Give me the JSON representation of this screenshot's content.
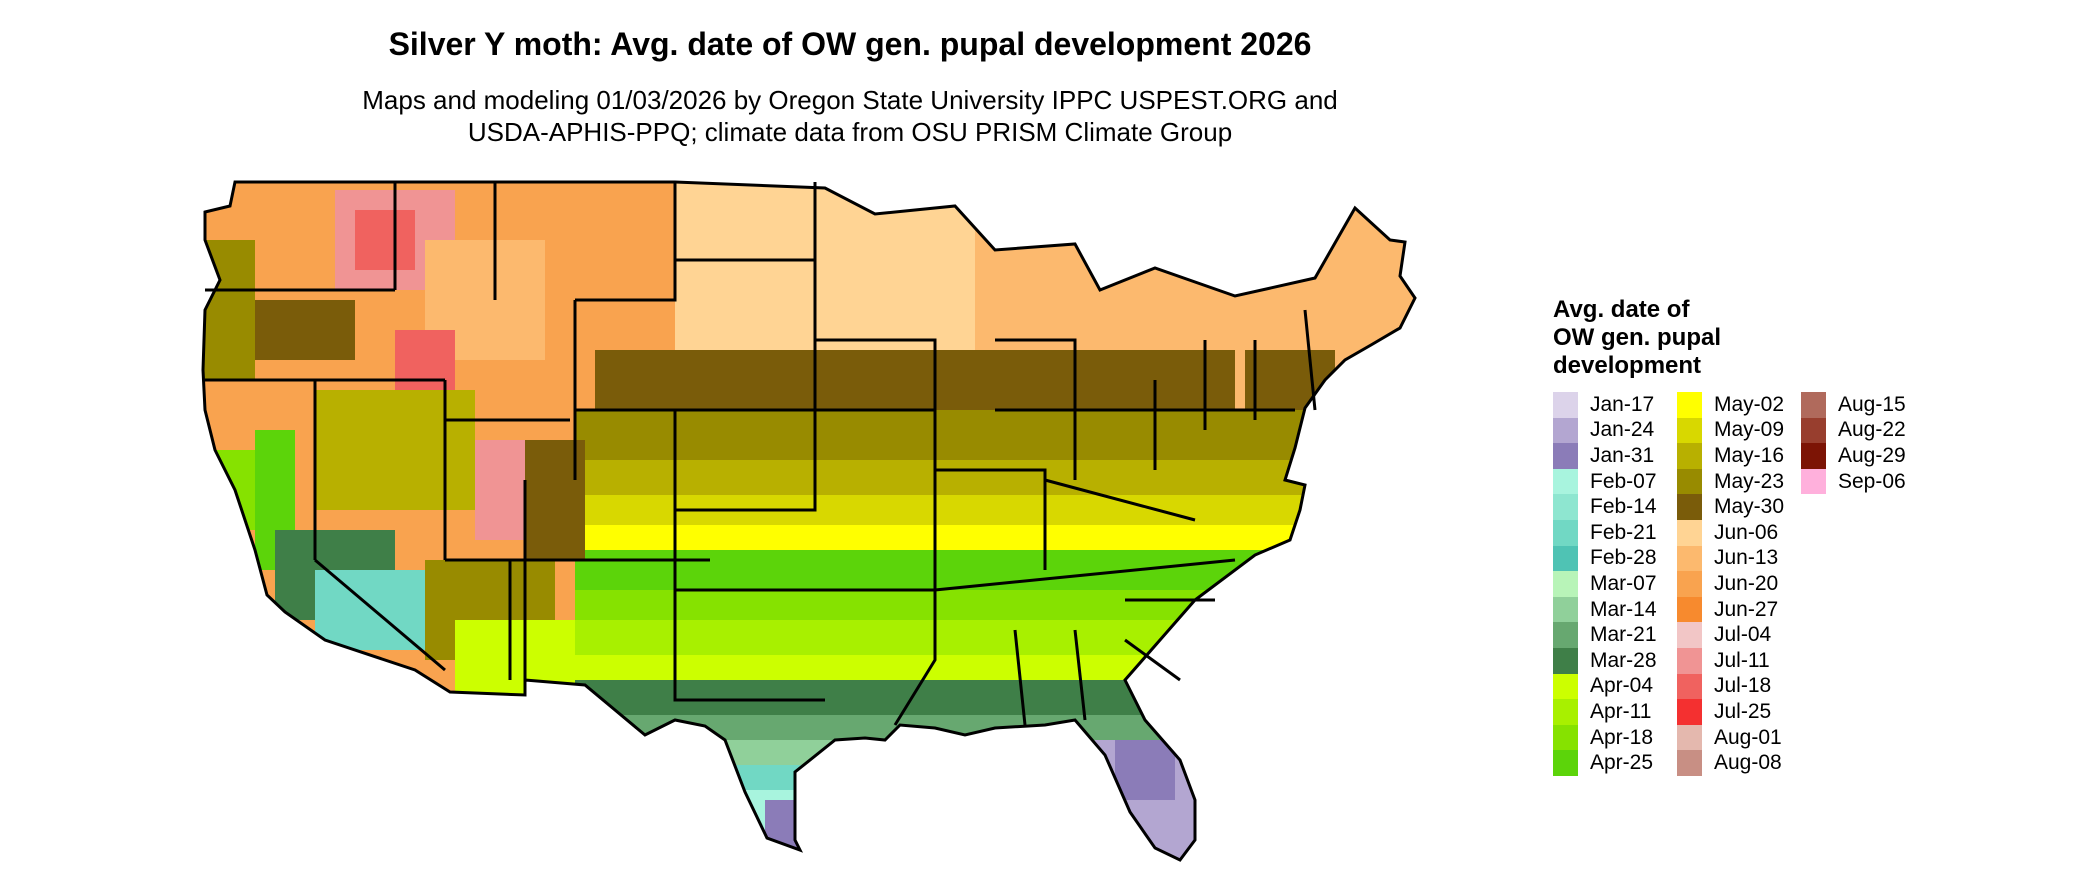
{
  "title": "Silver Y moth: Avg. date of OW gen. pupal development 2026",
  "subtitle": [
    "Maps and modeling 01/03/2026 by Oregon State University IPPC USPEST.ORG and",
    "USDA-APHIS-PPQ; climate data from OSU PRISM Climate Group"
  ],
  "legend": {
    "title": [
      "Avg. date of",
      "OW gen. pupal",
      "development"
    ],
    "columns": [
      [
        {
          "label": "Jan-17",
          "color": "#dcd3ea"
        },
        {
          "label": "Jan-24",
          "color": "#b3a6d1"
        },
        {
          "label": "Jan-31",
          "color": "#8b7cb8"
        },
        {
          "label": "Feb-07",
          "color": "#a8f4de"
        },
        {
          "label": "Feb-14",
          "color": "#8ee6d0"
        },
        {
          "label": "Feb-21",
          "color": "#71d8c4"
        },
        {
          "label": "Feb-28",
          "color": "#4fc3b4"
        },
        {
          "label": "Mar-07",
          "color": "#b8f4b8"
        },
        {
          "label": "Mar-14",
          "color": "#90d09a"
        },
        {
          "label": "Mar-21",
          "color": "#67a870"
        },
        {
          "label": "Mar-28",
          "color": "#3f7f48"
        },
        {
          "label": "Apr-04",
          "color": "#ccff00"
        },
        {
          "label": "Apr-11",
          "color": "#a8f000"
        },
        {
          "label": "Apr-18",
          "color": "#86e200"
        },
        {
          "label": "Apr-25",
          "color": "#5cd40a"
        }
      ],
      [
        {
          "label": "May-02",
          "color": "#ffff00"
        },
        {
          "label": "May-09",
          "color": "#d8d800"
        },
        {
          "label": "May-16",
          "color": "#b8b000"
        },
        {
          "label": "May-23",
          "color": "#988b00"
        },
        {
          "label": "May-30",
          "color": "#7a5c0a"
        },
        {
          "label": "Jun-06",
          "color": "#ffd494"
        },
        {
          "label": "Jun-13",
          "color": "#fcb96e"
        },
        {
          "label": "Jun-20",
          "color": "#f9a34f"
        },
        {
          "label": "Jun-27",
          "color": "#f78a2e"
        },
        {
          "label": "Jul-04",
          "color": "#f2c6c6"
        },
        {
          "label": "Jul-11",
          "color": "#f09494"
        },
        {
          "label": "Jul-18",
          "color": "#f0625f"
        },
        {
          "label": "Jul-25",
          "color": "#f43030"
        },
        {
          "label": "Aug-01",
          "color": "#e4b8ae"
        },
        {
          "label": "Aug-08",
          "color": "#c88f84"
        }
      ],
      [
        {
          "label": "Aug-15",
          "color": "#b06a5c"
        },
        {
          "label": "Aug-22",
          "color": "#983e2e"
        },
        {
          "label": "Aug-29",
          "color": "#7c1405"
        },
        {
          "label": "Sep-06",
          "color": "#ffb0dc"
        }
      ]
    ]
  }
}
